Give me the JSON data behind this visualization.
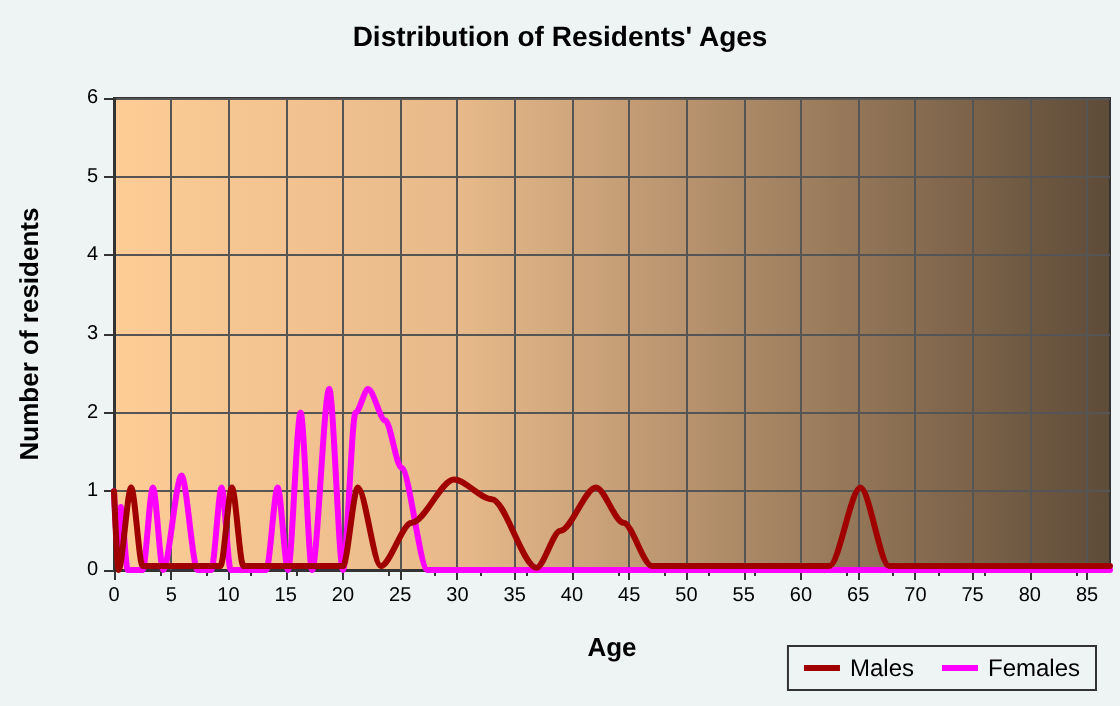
{
  "chart_data": {
    "type": "line",
    "title": "Distribution of Residents' Ages",
    "xlabel": "Age",
    "ylabel": "Number of residents",
    "xlim": [
      0,
      87
    ],
    "xticks": [
      0,
      5,
      10,
      15,
      20,
      25,
      30,
      35,
      40,
      45,
      50,
      55,
      60,
      65,
      70,
      75,
      80,
      85
    ],
    "ylim": [
      0,
      6
    ],
    "yticks": [
      0,
      1,
      2,
      3,
      4,
      5,
      6
    ],
    "grid": true,
    "legend": "bottom right",
    "marker": "none",
    "line_style": "solid",
    "series": [
      {
        "name": "Males",
        "color": "#a00000",
        "x": [
          0,
          0.4,
          1.5,
          2.5,
          5,
          9.3,
          10.3,
          11.3,
          15,
          20,
          21.3,
          23.3,
          26,
          29.7,
          33,
          36.9,
          39,
          42.1,
          44.5,
          47,
          55,
          62.5,
          65.2,
          67.7,
          75,
          87
        ],
        "values": [
          1,
          0,
          1.05,
          0.05,
          0.05,
          0.05,
          1.05,
          0.05,
          0.05,
          0.05,
          1.05,
          0.05,
          0.6,
          1.15,
          0.9,
          0.03,
          0.5,
          1.05,
          0.6,
          0.05,
          0.05,
          0.05,
          1.05,
          0.05,
          0.05,
          0.05
        ]
      },
      {
        "name": "Females",
        "color": "#ff00ff",
        "x": [
          0,
          0.3,
          0.6,
          1.2,
          2.5,
          3.4,
          4.3,
          5.9,
          7.3,
          8.5,
          9.4,
          10.2,
          13.3,
          14.3,
          15.2,
          16.3,
          17.3,
          18.8,
          20,
          21.1,
          22.2,
          23.7,
          25.1,
          27.4,
          35,
          50,
          65,
          87
        ],
        "values": [
          1,
          0.3,
          0.8,
          0,
          0,
          1.05,
          0,
          1.2,
          0,
          0,
          1.05,
          0,
          0,
          1.05,
          0,
          2,
          0,
          2.3,
          0,
          2,
          2.3,
          1.9,
          1.3,
          0,
          0,
          0,
          0,
          0
        ]
      }
    ]
  }
}
